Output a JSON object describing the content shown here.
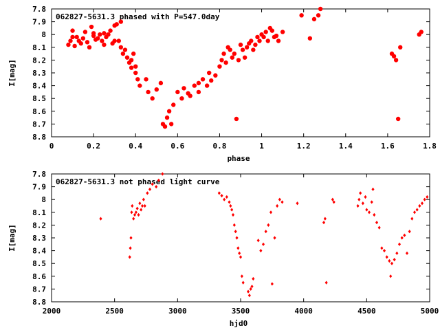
{
  "chart_data": [
    {
      "type": "scatter",
      "title": "062827-5631.3 phased with P=547.0day",
      "xlabel": "phase",
      "ylabel": "I[mag]",
      "xlim": [
        0,
        1.8
      ],
      "ylim": [
        7.8,
        8.8
      ],
      "y_inverted": true,
      "grid": false,
      "marker": "filled-circle",
      "color": "#ff0000",
      "x_ticks": [
        "0",
        "0.2",
        "0.4",
        "0.6",
        "0.8",
        "1",
        "1.2",
        "1.4",
        "1.6",
        "1.8"
      ],
      "y_ticks": [
        "7.8",
        "7.9",
        "8",
        "8.1",
        "8.2",
        "8.3",
        "8.4",
        "8.5",
        "8.6",
        "8.7",
        "8.8"
      ],
      "series": [
        {
          "x": [
            0.08,
            0.09,
            0.1,
            0.1,
            0.11,
            0.12,
            0.13,
            0.14,
            0.15,
            0.16,
            0.17,
            0.18,
            0.19,
            0.2,
            0.2,
            0.21,
            0.22,
            0.23,
            0.24,
            0.25,
            0.25,
            0.26,
            0.27,
            0.28,
            0.29,
            0.3,
            0.3,
            0.31,
            0.32,
            0.33,
            0.33,
            0.34,
            0.35,
            0.36,
            0.37,
            0.38,
            0.38,
            0.39,
            0.4,
            0.4,
            0.41,
            0.42,
            0.45,
            0.46,
            0.48,
            0.5,
            0.52,
            0.53,
            0.54,
            0.55,
            0.56,
            0.57,
            0.58,
            0.6,
            0.62,
            0.63,
            0.65,
            0.66,
            0.68,
            0.7,
            0.7,
            0.72,
            0.74,
            0.75,
            0.76,
            0.78,
            0.8,
            0.81,
            0.82,
            0.83,
            0.84,
            0.85,
            0.86,
            0.87,
            0.88,
            0.89,
            0.9,
            0.91,
            0.92,
            0.93,
            0.94,
            0.95,
            0.96,
            0.97,
            0.98,
            0.99,
            1.0,
            1.01,
            1.02,
            1.03,
            1.04,
            1.05,
            1.06,
            1.07,
            1.08,
            1.1,
            1.19,
            1.23,
            1.25,
            1.27,
            1.28,
            1.62,
            1.63,
            1.64,
            1.65,
            1.66,
            1.75,
            1.76
          ],
          "y": [
            8.08,
            8.05,
            8.02,
            7.97,
            8.09,
            8.02,
            8.05,
            8.07,
            8.03,
            7.98,
            8.06,
            8.1,
            7.94,
            7.99,
            8.01,
            8.04,
            8.03,
            8.0,
            8.05,
            7.99,
            8.08,
            8.02,
            8.0,
            7.97,
            8.07,
            8.05,
            7.93,
            7.92,
            8.05,
            8.1,
            7.9,
            8.15,
            8.12,
            8.18,
            8.22,
            8.2,
            8.26,
            8.15,
            8.3,
            8.25,
            8.35,
            8.4,
            8.35,
            8.45,
            8.5,
            8.43,
            8.38,
            8.7,
            8.72,
            8.65,
            8.6,
            8.7,
            8.55,
            8.45,
            8.5,
            8.42,
            8.46,
            8.48,
            8.4,
            8.38,
            8.45,
            8.35,
            8.4,
            8.3,
            8.36,
            8.32,
            8.25,
            8.2,
            8.15,
            8.22,
            8.1,
            8.12,
            8.18,
            8.15,
            8.66,
            8.2,
            8.08,
            8.12,
            8.18,
            8.1,
            8.07,
            8.05,
            8.12,
            8.08,
            8.02,
            8.05,
            8.0,
            8.02,
            7.98,
            8.05,
            7.95,
            7.97,
            8.02,
            8.01,
            8.05,
            7.98,
            7.85,
            8.03,
            7.88,
            7.85,
            7.8,
            8.15,
            8.17,
            8.2,
            8.66,
            8.1,
            8.0,
            7.98
          ]
        }
      ]
    },
    {
      "type": "scatter",
      "title": "062827-5631.3 not phased light curve",
      "xlabel": "hjd0",
      "ylabel": "I[mag]",
      "xlim": [
        2000,
        5000
      ],
      "ylim": [
        7.8,
        8.8
      ],
      "y_inverted": true,
      "grid": false,
      "marker": "diamond",
      "color": "#ff0000",
      "x_ticks": [
        "2000",
        "2500",
        "3000",
        "3500",
        "4000",
        "4500",
        "5000"
      ],
      "y_ticks": [
        "7.8",
        "7.9",
        "8",
        "8.1",
        "8.2",
        "8.3",
        "8.4",
        "8.5",
        "8.6",
        "8.7",
        "8.8"
      ],
      "series": [
        {
          "x": [
            2390,
            2620,
            2625,
            2630,
            2635,
            2640,
            2650,
            2660,
            2670,
            2680,
            2690,
            2700,
            2710,
            2720,
            2730,
            2740,
            2760,
            2780,
            2800,
            2830,
            2850,
            2880,
            3330,
            3350,
            3370,
            3390,
            3410,
            3420,
            3430,
            3440,
            3450,
            3460,
            3470,
            3480,
            3490,
            3500,
            3510,
            3520,
            3560,
            3570,
            3580,
            3590,
            3600,
            3640,
            3660,
            3680,
            3700,
            3720,
            3740,
            3750,
            3770,
            3790,
            3810,
            3830,
            3950,
            4160,
            4170,
            4180,
            4230,
            4240,
            4430,
            4440,
            4450,
            4470,
            4490,
            4500,
            4520,
            4540,
            4550,
            4560,
            4580,
            4600,
            4620,
            4640,
            4660,
            4680,
            4690,
            4700,
            4720,
            4740,
            4760,
            4780,
            4800,
            4820,
            4840,
            4860,
            4880,
            4900,
            4920,
            4940,
            4960,
            4980
          ],
          "y": [
            8.15,
            8.45,
            8.38,
            8.3,
            8.1,
            8.05,
            8.15,
            8.12,
            8.1,
            8.07,
            8.12,
            8.03,
            8.08,
            8.05,
            8.0,
            8.05,
            7.95,
            7.92,
            7.88,
            7.9,
            7.85,
            7.8,
            7.95,
            7.97,
            8.0,
            7.98,
            8.02,
            8.05,
            8.08,
            8.12,
            8.2,
            8.25,
            8.3,
            8.38,
            8.42,
            8.45,
            8.6,
            8.65,
            8.72,
            8.75,
            8.7,
            8.68,
            8.62,
            8.32,
            8.4,
            8.35,
            8.25,
            8.2,
            8.1,
            8.66,
            8.3,
            8.05,
            8.0,
            8.02,
            8.03,
            8.18,
            8.15,
            8.65,
            8.0,
            8.02,
            8.05,
            8.0,
            7.95,
            8.03,
            7.98,
            8.08,
            8.1,
            8.02,
            7.92,
            8.12,
            8.18,
            8.22,
            8.38,
            8.4,
            8.45,
            8.48,
            8.6,
            8.5,
            8.47,
            8.42,
            8.35,
            8.3,
            8.28,
            8.42,
            8.25,
            8.15,
            8.1,
            8.08,
            8.05,
            8.03,
            8.0,
            7.98
          ]
        }
      ]
    }
  ]
}
